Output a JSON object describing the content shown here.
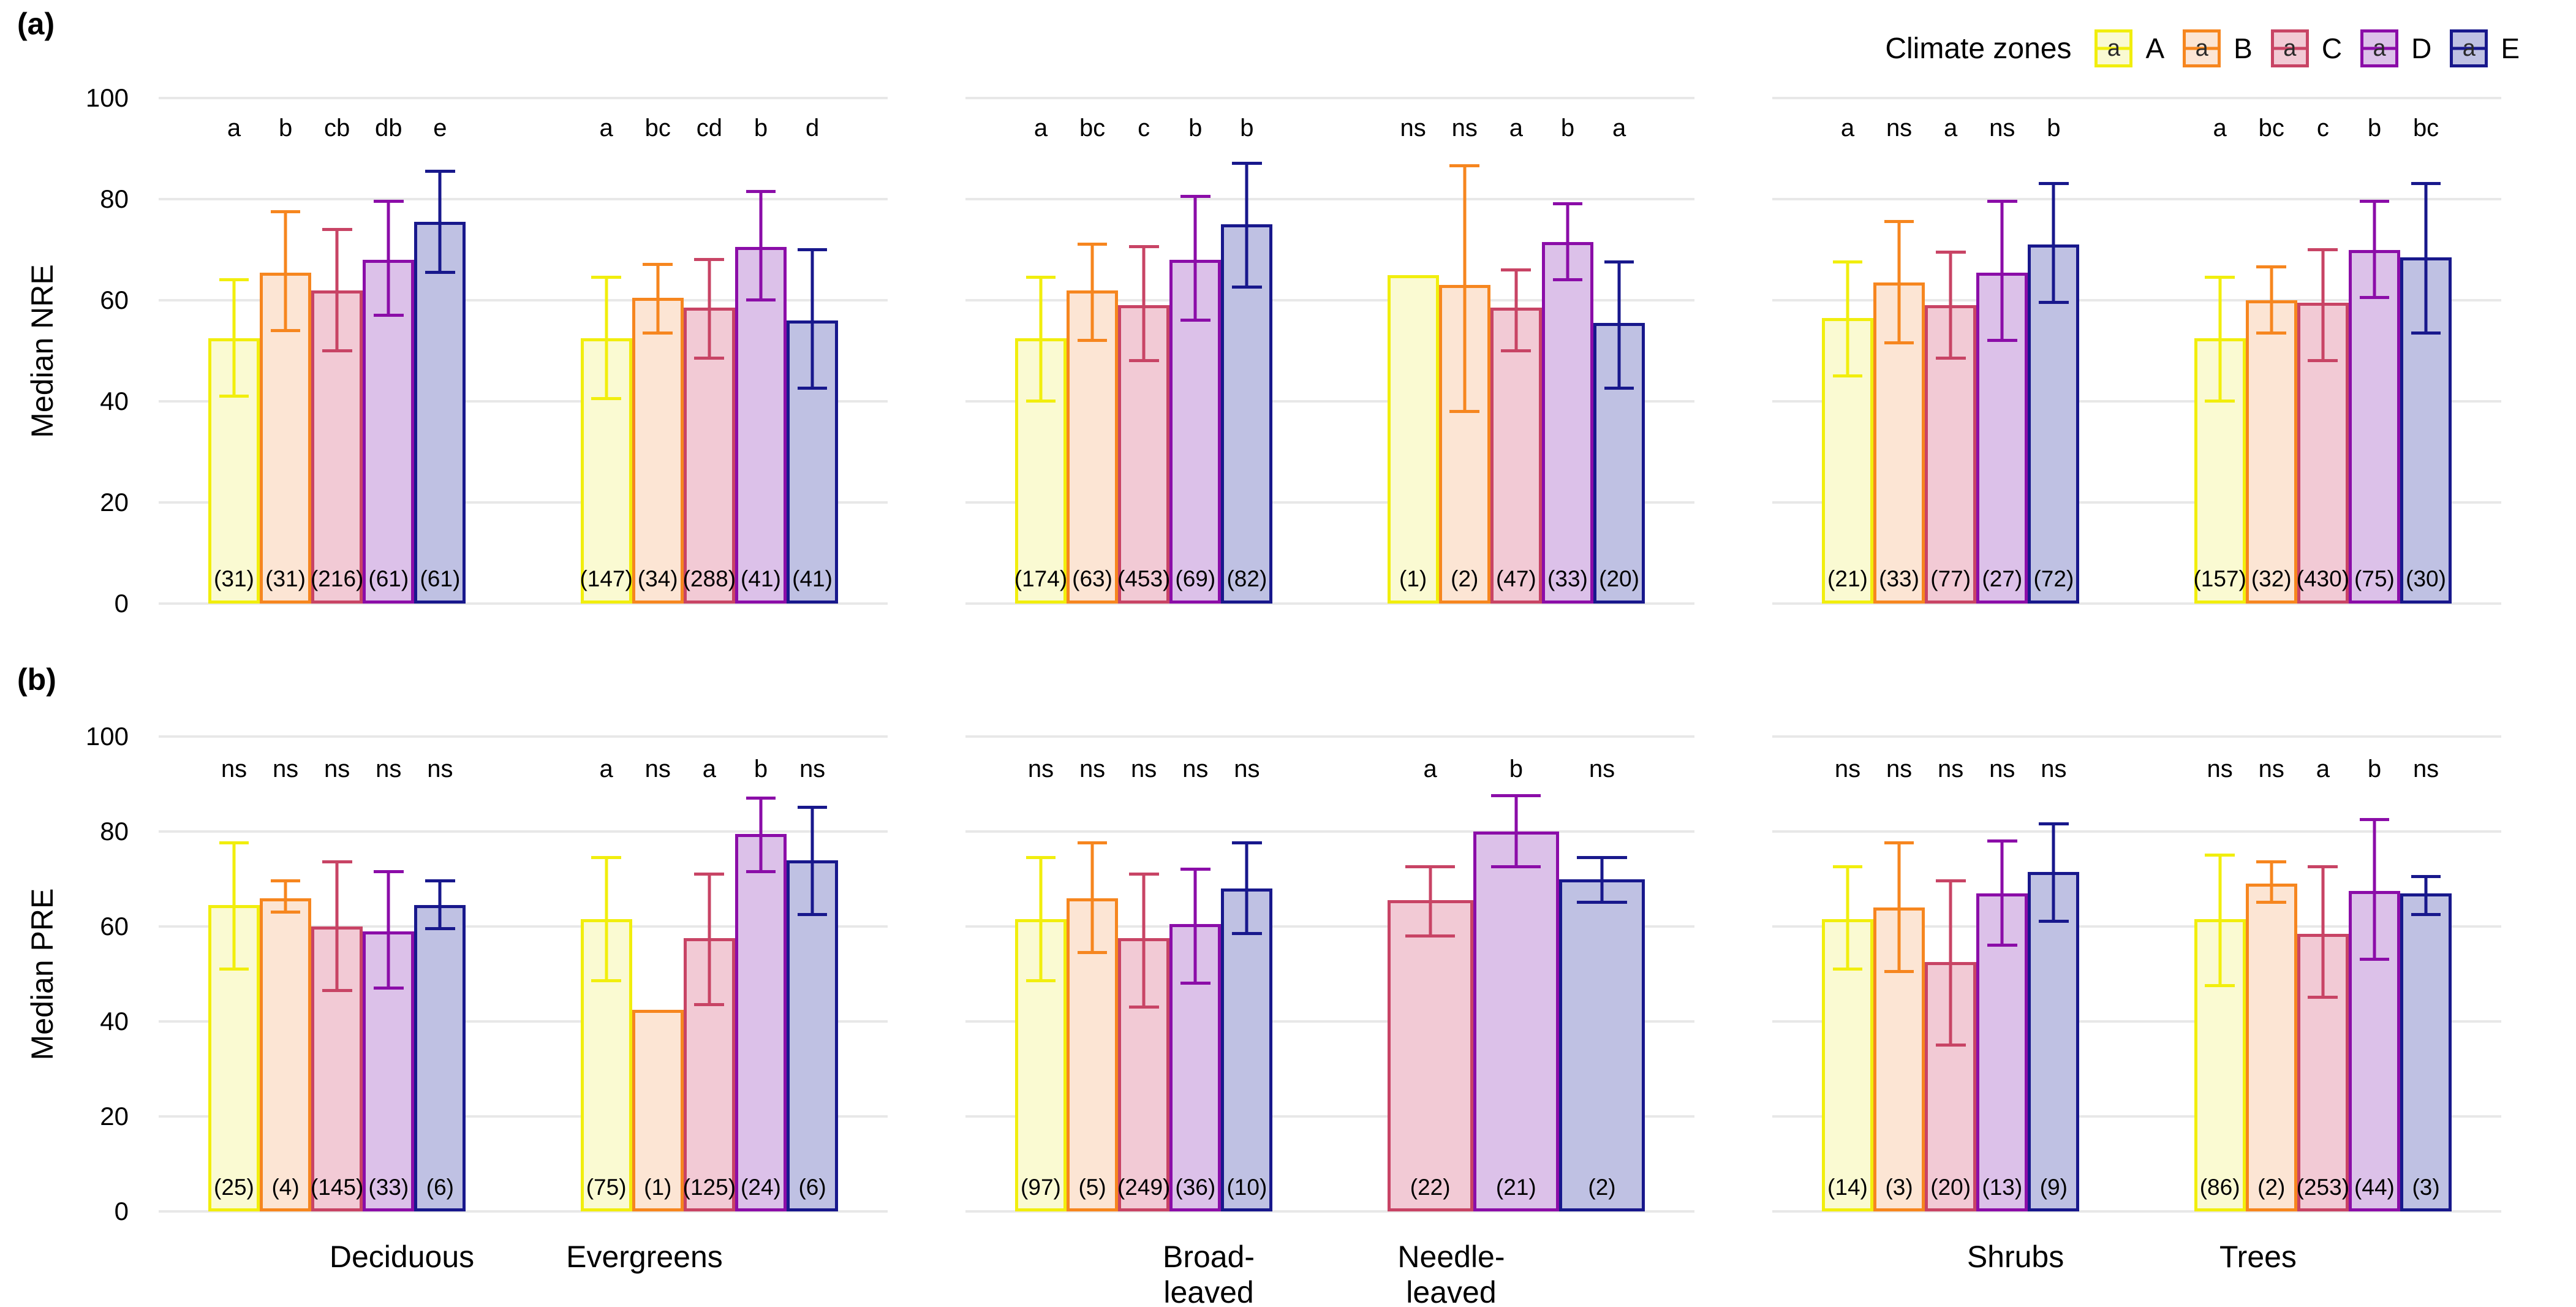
{
  "panel_tags": [
    "(a)",
    "(b)"
  ],
  "legend": {
    "title": "Climate zones",
    "key_letter": "a",
    "items": [
      {
        "label": "A",
        "stroke": "#F1EE0D",
        "fill": "#FAFAD2"
      },
      {
        "label": "B",
        "stroke": "#F6861F",
        "fill": "#FCE5D4"
      },
      {
        "label": "C",
        "stroke": "#C84465",
        "fill": "#F2CAD5"
      },
      {
        "label": "D",
        "stroke": "#8B0DA8",
        "fill": "#DCC1E9"
      },
      {
        "label": "E",
        "stroke": "#18188C",
        "fill": "#BFC1E3"
      }
    ]
  },
  "chart_data": [
    {
      "type": "bar",
      "panel": "(a)",
      "ylabel": "Median NRE",
      "ylim": [
        0,
        100
      ],
      "yticks": [
        0,
        20,
        40,
        60,
        80,
        100
      ],
      "grid": "major-horizontal",
      "legend_position": "top-right",
      "show_group_labels": false,
      "facets": [
        {
          "groups": [
            {
              "name": "Deciduous",
              "bars": [
                {
                  "zone": "A",
                  "value": 52.5,
                  "lo": 41,
                  "hi": 64,
                  "letter": "a",
                  "n": "(31)"
                },
                {
                  "zone": "B",
                  "value": 65.5,
                  "lo": 54,
                  "hi": 77.5,
                  "letter": "b",
                  "n": "(31)"
                },
                {
                  "zone": "C",
                  "value": 62,
                  "lo": 50,
                  "hi": 74,
                  "letter": "cb",
                  "n": "(216)"
                },
                {
                  "zone": "D",
                  "value": 68,
                  "lo": 57,
                  "hi": 79.5,
                  "letter": "db",
                  "n": "(61)"
                },
                {
                  "zone": "E",
                  "value": 75.5,
                  "lo": 65.5,
                  "hi": 85.5,
                  "letter": "e",
                  "n": "(61)"
                }
              ]
            },
            {
              "name": "Evergreens",
              "bars": [
                {
                  "zone": "A",
                  "value": 52.5,
                  "lo": 40.5,
                  "hi": 64.5,
                  "letter": "a",
                  "n": "(147)"
                },
                {
                  "zone": "B",
                  "value": 60.5,
                  "lo": 53.5,
                  "hi": 67,
                  "letter": "bc",
                  "n": "(34)"
                },
                {
                  "zone": "C",
                  "value": 58.5,
                  "lo": 48.5,
                  "hi": 68,
                  "letter": "cd",
                  "n": "(288)"
                },
                {
                  "zone": "D",
                  "value": 70.5,
                  "lo": 60,
                  "hi": 81.5,
                  "letter": "b",
                  "n": "(41)"
                },
                {
                  "zone": "E",
                  "value": 56,
                  "lo": 42.5,
                  "hi": 70,
                  "letter": "d",
                  "n": "(41)"
                }
              ]
            }
          ]
        },
        {
          "groups": [
            {
              "name": "Broad-leaved",
              "bars": [
                {
                  "zone": "A",
                  "value": 52.5,
                  "lo": 40,
                  "hi": 64.5,
                  "letter": "a",
                  "n": "(174)"
                },
                {
                  "zone": "B",
                  "value": 62,
                  "lo": 52,
                  "hi": 71,
                  "letter": "bc",
                  "n": "(63)"
                },
                {
                  "zone": "C",
                  "value": 59,
                  "lo": 48,
                  "hi": 70.5,
                  "letter": "c",
                  "n": "(453)"
                },
                {
                  "zone": "D",
                  "value": 68,
                  "lo": 56,
                  "hi": 80.5,
                  "letter": "b",
                  "n": "(69)"
                },
                {
                  "zone": "E",
                  "value": 75,
                  "lo": 62.5,
                  "hi": 87,
                  "letter": "b",
                  "n": "(82)"
                }
              ]
            },
            {
              "name": "Needle-leaved",
              "bars": [
                {
                  "zone": "A",
                  "value": 65,
                  "lo": null,
                  "hi": null,
                  "letter": "ns",
                  "n": "(1)"
                },
                {
                  "zone": "B",
                  "value": 63,
                  "lo": 38,
                  "hi": 86.5,
                  "letter": "ns",
                  "n": "(2)"
                },
                {
                  "zone": "C",
                  "value": 58.5,
                  "lo": 50,
                  "hi": 66,
                  "letter": "a",
                  "n": "(47)"
                },
                {
                  "zone": "D",
                  "value": 71.5,
                  "lo": 64,
                  "hi": 79,
                  "letter": "b",
                  "n": "(33)"
                },
                {
                  "zone": "E",
                  "value": 55.5,
                  "lo": 42.5,
                  "hi": 67.5,
                  "letter": "a",
                  "n": "(20)"
                }
              ]
            }
          ]
        },
        {
          "groups": [
            {
              "name": "Shrubs",
              "bars": [
                {
                  "zone": "A",
                  "value": 56.5,
                  "lo": 45,
                  "hi": 67.5,
                  "letter": "a",
                  "n": "(21)"
                },
                {
                  "zone": "B",
                  "value": 63.5,
                  "lo": 51.5,
                  "hi": 75.5,
                  "letter": "ns",
                  "n": "(33)"
                },
                {
                  "zone": "C",
                  "value": 59,
                  "lo": 48.5,
                  "hi": 69.5,
                  "letter": "a",
                  "n": "(77)"
                },
                {
                  "zone": "D",
                  "value": 65.5,
                  "lo": 52,
                  "hi": 79.5,
                  "letter": "ns",
                  "n": "(27)"
                },
                {
                  "zone": "E",
                  "value": 71,
                  "lo": 59.5,
                  "hi": 83,
                  "letter": "b",
                  "n": "(72)"
                }
              ]
            },
            {
              "name": "Trees",
              "bars": [
                {
                  "zone": "A",
                  "value": 52.5,
                  "lo": 40,
                  "hi": 64.5,
                  "letter": "a",
                  "n": "(157)"
                },
                {
                  "zone": "B",
                  "value": 60,
                  "lo": 53.5,
                  "hi": 66.5,
                  "letter": "bc",
                  "n": "(32)"
                },
                {
                  "zone": "C",
                  "value": 59.5,
                  "lo": 48,
                  "hi": 70,
                  "letter": "c",
                  "n": "(430)"
                },
                {
                  "zone": "D",
                  "value": 70,
                  "lo": 60.5,
                  "hi": 79.5,
                  "letter": "b",
                  "n": "(75)"
                },
                {
                  "zone": "E",
                  "value": 68.5,
                  "lo": 53.5,
                  "hi": 83,
                  "letter": "bc",
                  "n": "(30)"
                }
              ]
            }
          ]
        }
      ]
    },
    {
      "type": "bar",
      "panel": "(b)",
      "ylabel": "Median PRE",
      "ylim": [
        0,
        100
      ],
      "yticks": [
        0,
        20,
        40,
        60,
        80,
        100
      ],
      "grid": "major-horizontal",
      "show_group_labels": true,
      "facets": [
        {
          "groups": [
            {
              "name": "Deciduous",
              "bars": [
                {
                  "zone": "A",
                  "value": 64.5,
                  "lo": 51,
                  "hi": 77.5,
                  "letter": "ns",
                  "n": "(25)"
                },
                {
                  "zone": "B",
                  "value": 66,
                  "lo": 63,
                  "hi": 69.5,
                  "letter": "ns",
                  "n": "(4)"
                },
                {
                  "zone": "C",
                  "value": 60,
                  "lo": 46.5,
                  "hi": 73.5,
                  "letter": "ns",
                  "n": "(145)"
                },
                {
                  "zone": "D",
                  "value": 59,
                  "lo": 47,
                  "hi": 71.5,
                  "letter": "ns",
                  "n": "(33)"
                },
                {
                  "zone": "E",
                  "value": 64.5,
                  "lo": 59.5,
                  "hi": 69.5,
                  "letter": "ns",
                  "n": "(6)"
                }
              ]
            },
            {
              "name": "Evergreens",
              "bars": [
                {
                  "zone": "A",
                  "value": 61.5,
                  "lo": 48.5,
                  "hi": 74.5,
                  "letter": "a",
                  "n": "(75)"
                },
                {
                  "zone": "B",
                  "value": 42.5,
                  "lo": null,
                  "hi": null,
                  "letter": "ns",
                  "n": "(1)"
                },
                {
                  "zone": "C",
                  "value": 57.5,
                  "lo": 43.5,
                  "hi": 71,
                  "letter": "a",
                  "n": "(125)"
                },
                {
                  "zone": "D",
                  "value": 79.5,
                  "lo": 71.5,
                  "hi": 87,
                  "letter": "b",
                  "n": "(24)"
                },
                {
                  "zone": "E",
                  "value": 74,
                  "lo": 62.5,
                  "hi": 85,
                  "letter": "ns",
                  "n": "(6)"
                }
              ]
            }
          ]
        },
        {
          "groups": [
            {
              "name": "Broad-leaved",
              "bars": [
                {
                  "zone": "A",
                  "value": 61.5,
                  "lo": 48.5,
                  "hi": 74.5,
                  "letter": "ns",
                  "n": "(97)"
                },
                {
                  "zone": "B",
                  "value": 66,
                  "lo": 54.5,
                  "hi": 77.5,
                  "letter": "ns",
                  "n": "(5)"
                },
                {
                  "zone": "C",
                  "value": 57.5,
                  "lo": 43,
                  "hi": 71,
                  "letter": "ns",
                  "n": "(249)"
                },
                {
                  "zone": "D",
                  "value": 60.5,
                  "lo": 48,
                  "hi": 72,
                  "letter": "ns",
                  "n": "(36)"
                },
                {
                  "zone": "E",
                  "value": 68,
                  "lo": 58.5,
                  "hi": 77.5,
                  "letter": "ns",
                  "n": "(10)"
                }
              ]
            },
            {
              "name": "Needle-leaved",
              "bars": [
                {
                  "zone": "C",
                  "value": 65.5,
                  "lo": 58,
                  "hi": 72.5,
                  "letter": "a",
                  "n": "(22)"
                },
                {
                  "zone": "D",
                  "value": 80,
                  "lo": 72.5,
                  "hi": 87.5,
                  "letter": "b",
                  "n": "(21)"
                },
                {
                  "zone": "E",
                  "value": 70,
                  "lo": 65,
                  "hi": 74.5,
                  "letter": "ns",
                  "n": "(2)"
                }
              ]
            }
          ]
        },
        {
          "groups": [
            {
              "name": "Shrubs",
              "bars": [
                {
                  "zone": "A",
                  "value": 61.5,
                  "lo": 51,
                  "hi": 72.5,
                  "letter": "ns",
                  "n": "(14)"
                },
                {
                  "zone": "B",
                  "value": 64,
                  "lo": 50.5,
                  "hi": 77.5,
                  "letter": "ns",
                  "n": "(3)"
                },
                {
                  "zone": "C",
                  "value": 52.5,
                  "lo": 35,
                  "hi": 69.5,
                  "letter": "ns",
                  "n": "(20)"
                },
                {
                  "zone": "D",
                  "value": 67,
                  "lo": 56,
                  "hi": 78,
                  "letter": "ns",
                  "n": "(13)"
                },
                {
                  "zone": "E",
                  "value": 71.5,
                  "lo": 61,
                  "hi": 81.5,
                  "letter": "ns",
                  "n": "(9)"
                }
              ]
            },
            {
              "name": "Trees",
              "bars": [
                {
                  "zone": "A",
                  "value": 61.5,
                  "lo": 47.5,
                  "hi": 75,
                  "letter": "ns",
                  "n": "(86)"
                },
                {
                  "zone": "B",
                  "value": 69,
                  "lo": 65,
                  "hi": 73.5,
                  "letter": "ns",
                  "n": "(2)"
                },
                {
                  "zone": "C",
                  "value": 58.5,
                  "lo": 45,
                  "hi": 72.5,
                  "letter": "a",
                  "n": "(253)"
                },
                {
                  "zone": "D",
                  "value": 67.5,
                  "lo": 53,
                  "hi": 82.5,
                  "letter": "b",
                  "n": "(44)"
                },
                {
                  "zone": "E",
                  "value": 67,
                  "lo": 62.5,
                  "hi": 70.5,
                  "letter": "ns",
                  "n": "(3)"
                }
              ]
            }
          ]
        }
      ]
    }
  ]
}
